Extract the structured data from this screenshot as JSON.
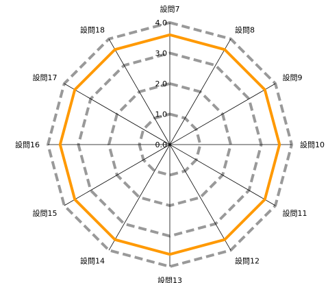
{
  "chart_data": {
    "type": "radar",
    "categories": [
      "設問7",
      "設問8",
      "設問9",
      "設問10",
      "設問11",
      "設問12",
      "設問13",
      "設問14",
      "設問15",
      "設問16",
      "設問17",
      "設問18"
    ],
    "ticks": [
      "0.0",
      "1.0",
      "2.0",
      "3.0",
      "4.0"
    ],
    "rlim": [
      0,
      4
    ],
    "grid": true,
    "legend": "none",
    "series": [
      {
        "values": [
          3.6,
          3.6,
          3.6,
          3.6,
          3.6,
          3.6,
          3.6,
          3.6,
          3.6,
          3.6,
          3.6,
          3.6
        ],
        "color": "#ff9900"
      }
    ],
    "gridline_color": "#999999",
    "spoke_color": "#000000"
  }
}
